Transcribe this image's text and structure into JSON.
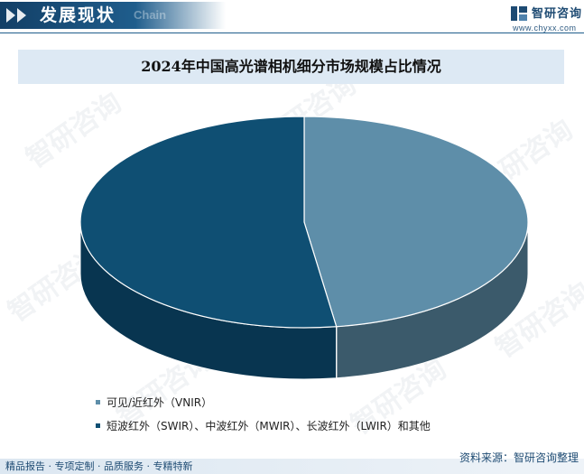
{
  "header": {
    "title": "发展现状",
    "subtitle": "Chain",
    "brand": "智研咨询",
    "url": "www.chyxx.com"
  },
  "watermark": "智研咨询",
  "colors": {
    "header_blue": "#1f5d8c",
    "series_vnir": "#5e8ea9",
    "series_other": "#0f4f73"
  },
  "chart_data": {
    "type": "pie",
    "title": "2024年中国高光谱相机细分市场规模占比情况",
    "series": [
      {
        "name": "可见/近红外（VNIR）",
        "value": 47.7,
        "color": "#5e8ea9",
        "side_color": "#3b5a6b"
      },
      {
        "name": "短波红外（SWIR）、中波红外（MWIR）、长波红外（LWIR）和其他",
        "value": 52.3,
        "color": "#0f4f73",
        "side_color": "#083550"
      }
    ],
    "legend_position": "bottom-left",
    "style": "3d"
  },
  "footer": {
    "source": "资料来源：智研咨询整理",
    "tags": "精品报告 · 专项定制 · 品质服务 · 专精特新"
  }
}
